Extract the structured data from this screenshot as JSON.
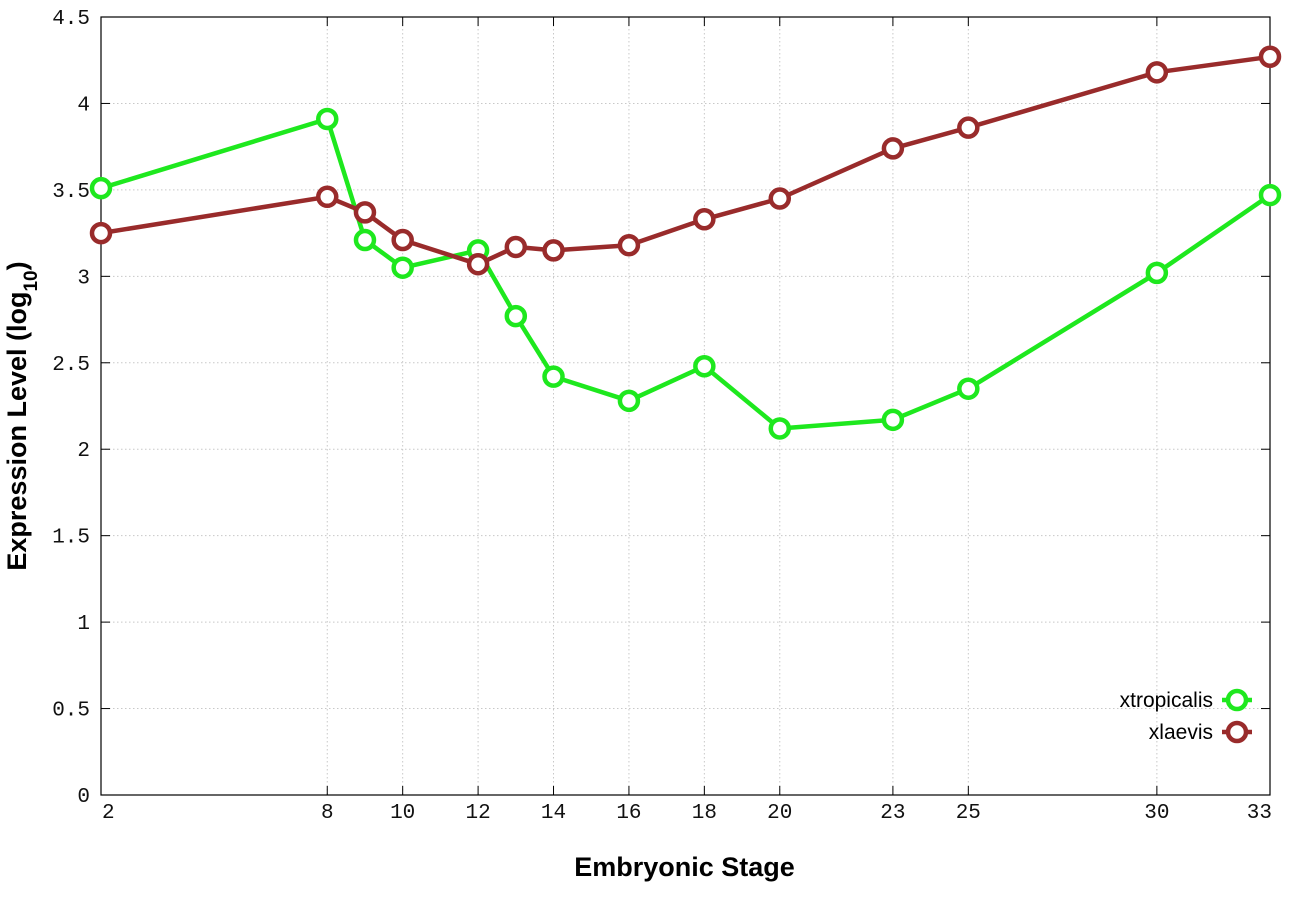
{
  "chart_data": {
    "type": "line",
    "title": "",
    "xlabel": "Embryonic Stage",
    "ylabel_main": "Expression Level (log",
    "ylabel_sub": "10",
    "ylabel_close": ")",
    "x_categories": [
      "2",
      "8",
      "10",
      "12",
      "14",
      "16",
      "18",
      "20",
      "23",
      "25",
      "30",
      "33"
    ],
    "x_ticks": [
      2,
      8,
      10,
      12,
      14,
      16,
      18,
      20,
      23,
      25,
      30,
      33
    ],
    "xlim": [
      2,
      33
    ],
    "ylim": [
      0,
      4.5
    ],
    "y_ticks": [
      0,
      0.5,
      1,
      1.5,
      2,
      2.5,
      3,
      3.5,
      4,
      4.5
    ],
    "y_tick_labels": [
      "0",
      "0.5",
      "1",
      "1.5",
      "2",
      "2.5",
      "3",
      "3.5",
      "4",
      "4.5"
    ],
    "grid": true,
    "legend_position": "bottom-right",
    "series": [
      {
        "name": "xtropicalis",
        "color": "#1ee81e",
        "points": [
          [
            2,
            3.51
          ],
          [
            8,
            3.91
          ],
          [
            9,
            3.21
          ],
          [
            10,
            3.05
          ],
          [
            12,
            3.15
          ],
          [
            13,
            2.77
          ],
          [
            14,
            2.42
          ],
          [
            16,
            2.28
          ],
          [
            18,
            2.48
          ],
          [
            20,
            2.12
          ],
          [
            23,
            2.17
          ],
          [
            25,
            2.35
          ],
          [
            30,
            3.02
          ],
          [
            33,
            3.47
          ]
        ]
      },
      {
        "name": "xlaevis",
        "color": "#992b2b",
        "points": [
          [
            2,
            3.25
          ],
          [
            8,
            3.46
          ],
          [
            9,
            3.37
          ],
          [
            10,
            3.21
          ],
          [
            12,
            3.07
          ],
          [
            13,
            3.17
          ],
          [
            14,
            3.15
          ],
          [
            16,
            3.18
          ],
          [
            18,
            3.33
          ],
          [
            20,
            3.45
          ],
          [
            23,
            3.74
          ],
          [
            25,
            3.86
          ],
          [
            30,
            4.18
          ],
          [
            33,
            4.27
          ]
        ]
      }
    ]
  }
}
